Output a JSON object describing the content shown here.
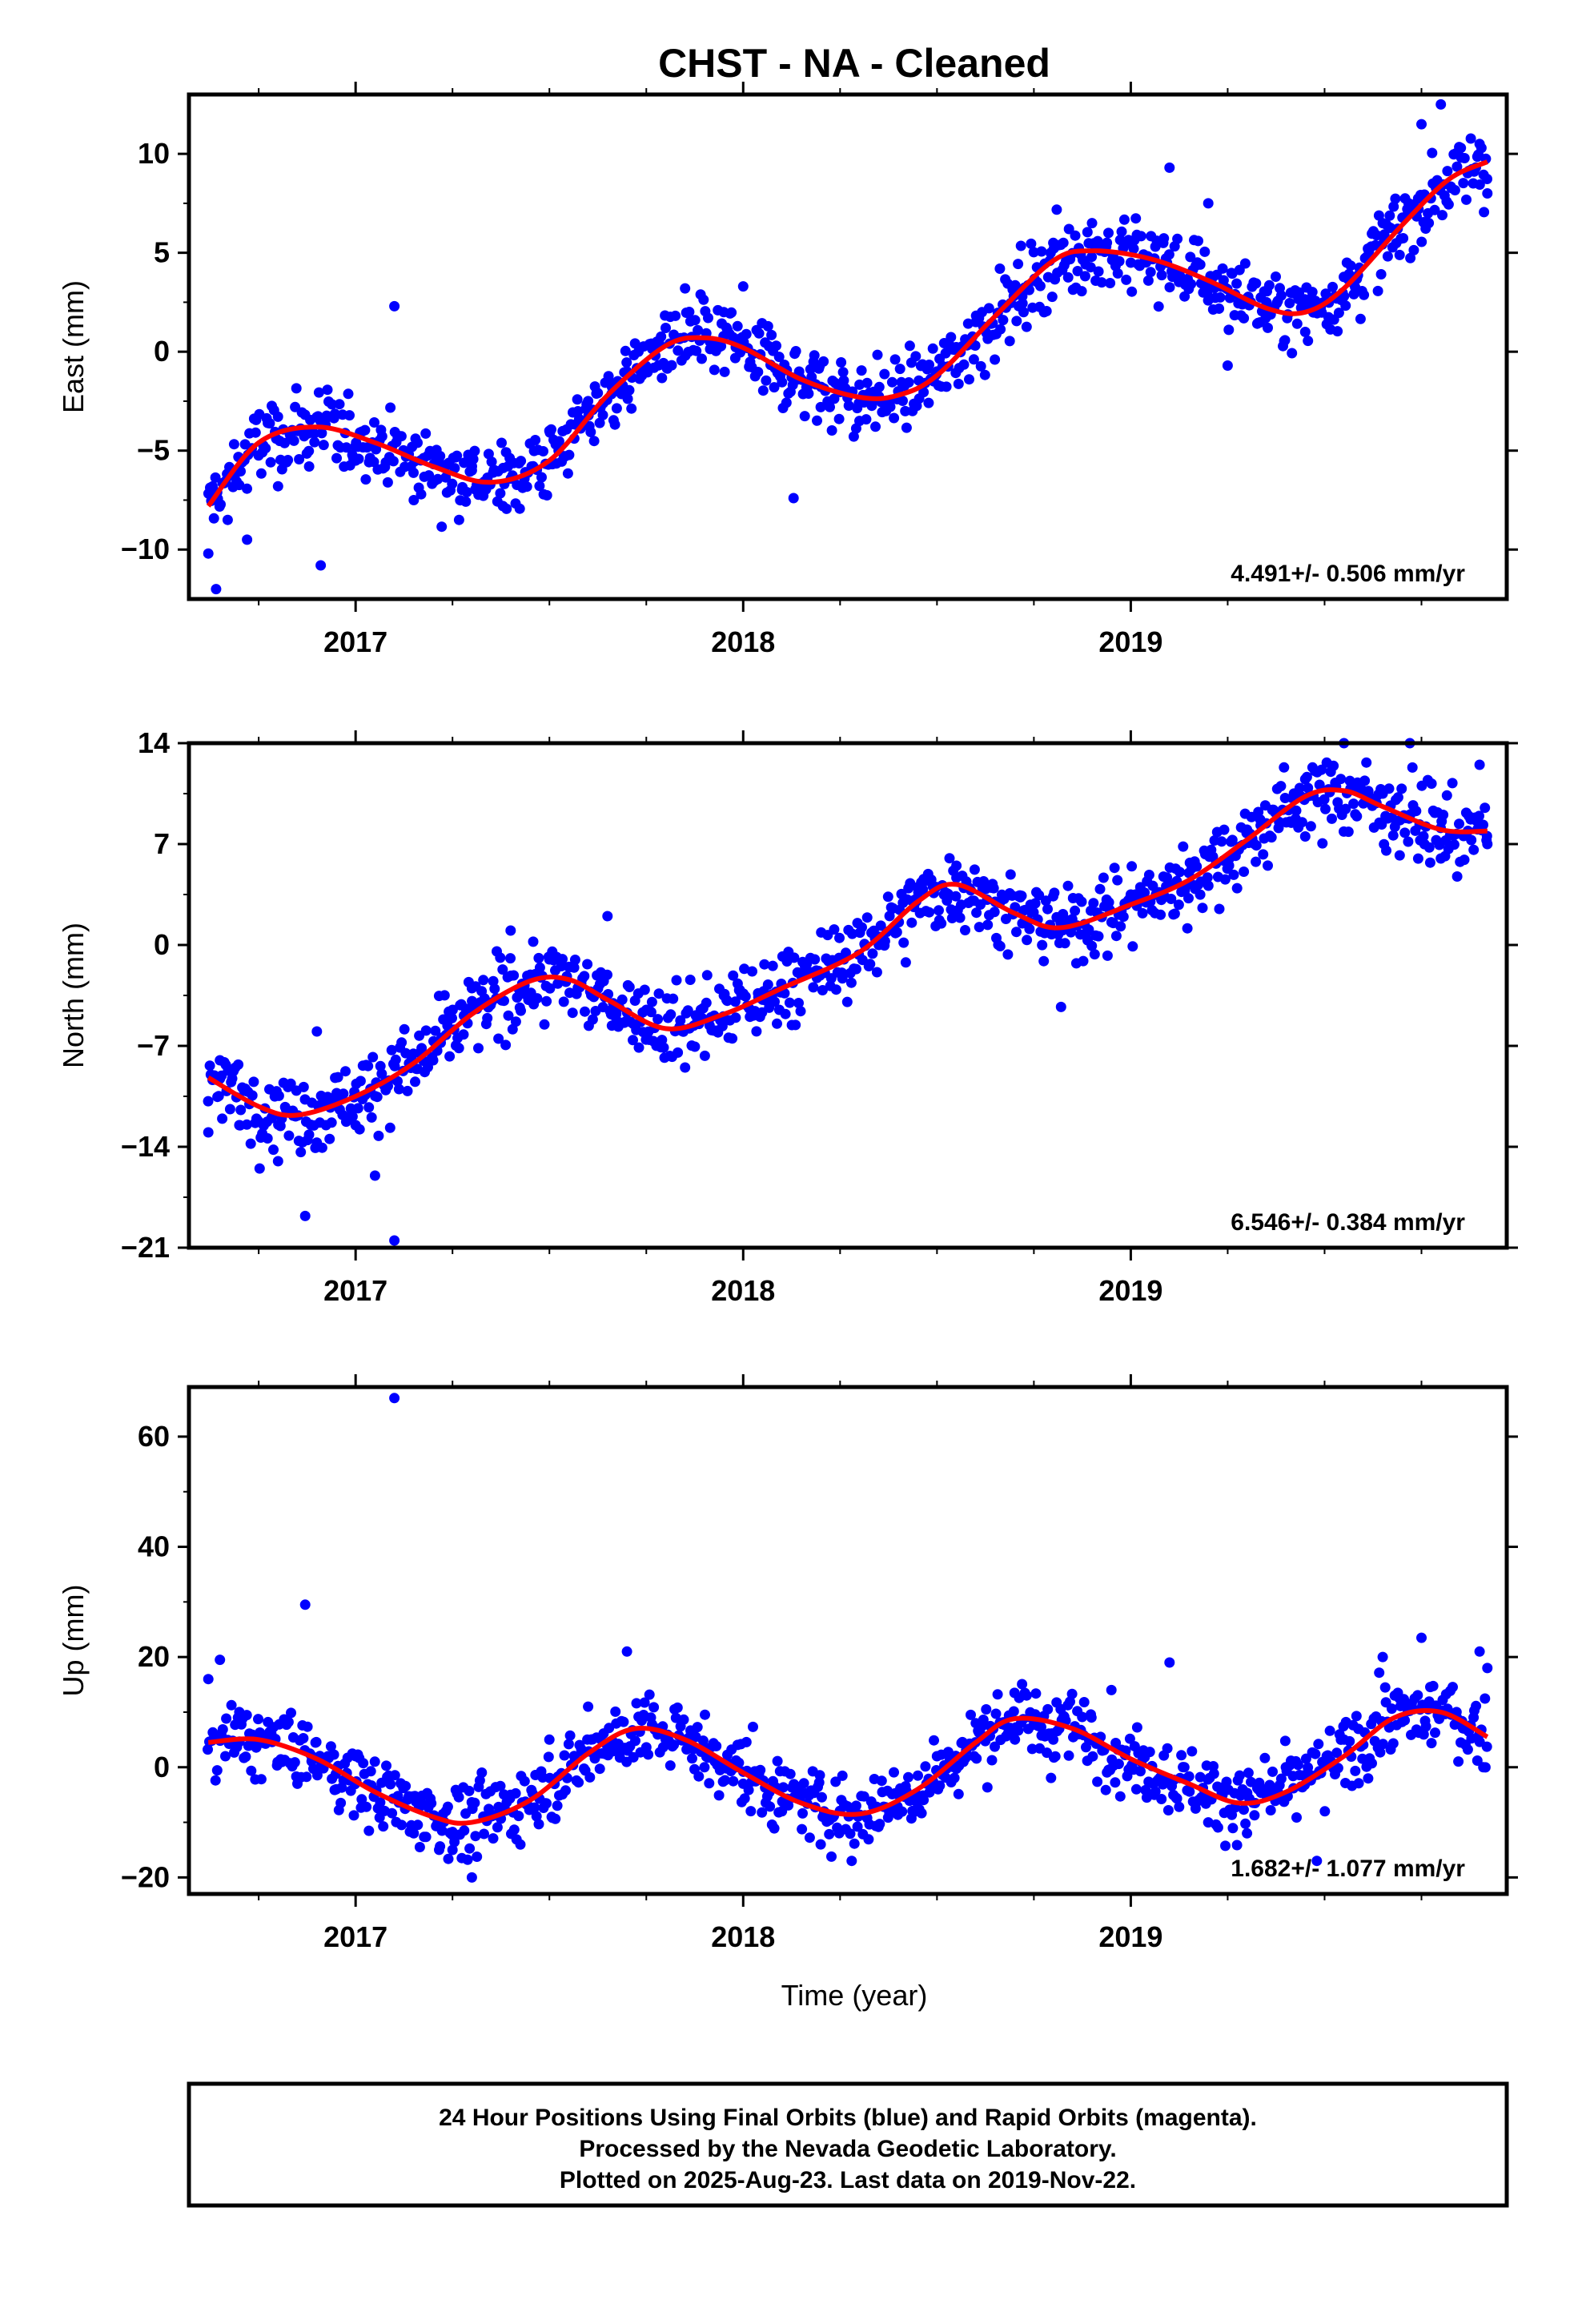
{
  "title": "CHST  - NA - Cleaned",
  "xlabel": "Time (year)",
  "footer": [
    "24 Hour Positions Using Final Orbits (blue) and Rapid Orbits (magenta).",
    "Processed by the Nevada Geodetic Laboratory.",
    "Plotted on 2025-Aug-23. Last data on 2019-Nov-22."
  ],
  "colors": {
    "points": "#0000ff",
    "fit": "#ff0000",
    "frame": "#000000"
  },
  "chart_data": [
    {
      "type": "scatter",
      "ylabel": "East (mm)",
      "rate_text": "4.491+/- 0.506 mm/yr",
      "xlim": [
        2016.57,
        2019.97
      ],
      "ylim": [
        -12.5,
        13
      ],
      "yticks": [
        -10,
        -5,
        0,
        5,
        10
      ],
      "xticks": [
        2017,
        2018,
        2019
      ],
      "fit": {
        "x": [
          2016.62,
          2016.75,
          2016.9,
          2017.05,
          2017.2,
          2017.35,
          2017.5,
          2017.65,
          2017.8,
          2017.9,
          2018.0,
          2018.15,
          2018.3,
          2018.4,
          2018.5,
          2018.65,
          2018.8,
          2018.9,
          2019.05,
          2019.2,
          2019.35,
          2019.45,
          2019.55,
          2019.7,
          2019.82,
          2019.92
        ],
        "y": [
          -7.8,
          -4.6,
          -3.8,
          -4.6,
          -5.8,
          -6.6,
          -5.5,
          -2.2,
          0.3,
          0.7,
          0.2,
          -1.4,
          -2.3,
          -2.2,
          -1.2,
          1.8,
          4.6,
          5.1,
          4.7,
          3.6,
          2.2,
          2.0,
          3.2,
          6.4,
          8.7,
          9.6
        ]
      },
      "points_sample": [
        [
          2016.62,
          -10.2
        ],
        [
          2016.64,
          -12.0
        ],
        [
          2016.67,
          -8.5
        ],
        [
          2016.72,
          -9.5
        ],
        [
          2016.8,
          -6.8
        ],
        [
          2016.88,
          -5.8
        ],
        [
          2016.91,
          -10.8
        ],
        [
          2017.0,
          -5.5
        ],
        [
          2017.1,
          2.3
        ],
        [
          2017.15,
          -7.5
        ],
        [
          2017.2,
          -5.2
        ],
        [
          2017.3,
          -6.0
        ],
        [
          2017.38,
          -7.8
        ],
        [
          2017.5,
          -4.0
        ],
        [
          2017.6,
          -2.5
        ],
        [
          2017.7,
          -1.0
        ],
        [
          2017.8,
          1.2
        ],
        [
          2017.85,
          3.2
        ],
        [
          2017.95,
          2.0
        ],
        [
          2018.0,
          3.3
        ],
        [
          2018.08,
          -1.8
        ],
        [
          2018.13,
          -7.4
        ],
        [
          2018.2,
          -2.8
        ],
        [
          2018.3,
          -3.5
        ],
        [
          2018.4,
          -2.0
        ],
        [
          2018.5,
          -1.0
        ],
        [
          2018.6,
          1.5
        ],
        [
          2018.72,
          2.8
        ],
        [
          2018.8,
          5.5
        ],
        [
          2018.9,
          6.5
        ],
        [
          2019.0,
          4.5
        ],
        [
          2019.1,
          9.3
        ],
        [
          2019.2,
          7.5
        ],
        [
          2019.25,
          -0.7
        ],
        [
          2019.35,
          2.5
        ],
        [
          2019.45,
          1.0
        ],
        [
          2019.55,
          2.8
        ],
        [
          2019.65,
          6.5
        ],
        [
          2019.75,
          11.5
        ],
        [
          2019.8,
          12.5
        ],
        [
          2019.9,
          10.5
        ],
        [
          2019.92,
          8.0
        ]
      ]
    },
    {
      "type": "scatter",
      "ylabel": "North (mm)",
      "rate_text": "6.546+/- 0.384 mm/yr",
      "xlim": [
        2016.57,
        2019.97
      ],
      "ylim": [
        -21,
        14
      ],
      "yticks": [
        -21,
        -14,
        -7,
        0,
        7,
        14
      ],
      "xticks": [
        2017,
        2018,
        2019
      ],
      "fit": {
        "x": [
          2016.62,
          2016.75,
          2016.85,
          2017.0,
          2017.15,
          2017.3,
          2017.45,
          2017.55,
          2017.65,
          2017.8,
          2017.95,
          2018.1,
          2018.3,
          2018.45,
          2018.55,
          2018.7,
          2018.82,
          2019.0,
          2019.15,
          2019.3,
          2019.45,
          2019.55,
          2019.65,
          2019.8,
          2019.92
        ],
        "y": [
          -9.2,
          -11.2,
          -11.8,
          -10.5,
          -8.2,
          -4.8,
          -2.5,
          -2.4,
          -3.8,
          -5.8,
          -4.8,
          -3.0,
          -0.5,
          3.0,
          4.2,
          2.2,
          1.2,
          2.8,
          4.5,
          7.3,
          10.3,
          10.7,
          9.6,
          8.0,
          7.9
        ]
      },
      "points_sample": [
        [
          2016.62,
          -13.0
        ],
        [
          2016.65,
          -8.0
        ],
        [
          2016.7,
          -12.5
        ],
        [
          2016.8,
          -15.0
        ],
        [
          2016.87,
          -18.8
        ],
        [
          2016.9,
          -6.0
        ],
        [
          2017.0,
          -12.5
        ],
        [
          2017.05,
          -16.0
        ],
        [
          2017.1,
          -20.5
        ],
        [
          2017.2,
          -8.0
        ],
        [
          2017.3,
          -3.0
        ],
        [
          2017.4,
          1.0
        ],
        [
          2017.5,
          -1.0
        ],
        [
          2017.65,
          2.0
        ],
        [
          2017.75,
          -4.5
        ],
        [
          2017.85,
          -8.5
        ],
        [
          2017.95,
          -3.5
        ],
        [
          2018.05,
          -3.8
        ],
        [
          2018.2,
          -2.0
        ],
        [
          2018.35,
          0.0
        ],
        [
          2018.45,
          4.0
        ],
        [
          2018.55,
          5.5
        ],
        [
          2018.65,
          3.0
        ],
        [
          2018.72,
          1.5
        ],
        [
          2018.82,
          -4.3
        ],
        [
          2019.0,
          3.5
        ],
        [
          2019.15,
          5.0
        ],
        [
          2019.3,
          8.0
        ],
        [
          2019.45,
          11.5
        ],
        [
          2019.55,
          14.0
        ],
        [
          2019.65,
          10.5
        ],
        [
          2019.72,
          14.0
        ],
        [
          2019.8,
          6.0
        ],
        [
          2019.9,
          12.5
        ],
        [
          2019.92,
          7.0
        ]
      ]
    },
    {
      "type": "scatter",
      "ylabel": "Up (mm)",
      "rate_text": "1.682+/- 1.077 mm/yr",
      "xlim": [
        2016.57,
        2019.97
      ],
      "ylim": [
        -23,
        69
      ],
      "yticks": [
        -20,
        0,
        20,
        40,
        60
      ],
      "xticks": [
        2017,
        2018,
        2019
      ],
      "fit": {
        "x": [
          2016.62,
          2016.75,
          2016.9,
          2017.05,
          2017.2,
          2017.3,
          2017.45,
          2017.6,
          2017.72,
          2017.85,
          2018.0,
          2018.15,
          2018.3,
          2018.45,
          2018.6,
          2018.7,
          2018.85,
          2019.0,
          2019.15,
          2019.28,
          2019.4,
          2019.55,
          2019.68,
          2019.8,
          2019.92
        ],
        "y": [
          4.5,
          5.0,
          1.5,
          -4.5,
          -9.0,
          -10.0,
          -6.0,
          2.5,
          7.0,
          5.0,
          -1.0,
          -6.5,
          -8.5,
          -4.0,
          4.5,
          8.8,
          7.0,
          1.5,
          -3.0,
          -6.5,
          -4.5,
          2.0,
          9.0,
          10.0,
          5.5
        ]
      },
      "points_sample": [
        [
          2016.62,
          16.0
        ],
        [
          2016.65,
          19.5
        ],
        [
          2016.7,
          10.0
        ],
        [
          2016.75,
          5.0
        ],
        [
          2016.87,
          29.5
        ],
        [
          2016.95,
          -4.0
        ],
        [
          2017.0,
          2.0
        ],
        [
          2017.1,
          67.0
        ],
        [
          2017.15,
          -12.0
        ],
        [
          2017.25,
          -15.0
        ],
        [
          2017.3,
          -20.0
        ],
        [
          2017.4,
          -5.0
        ],
        [
          2017.5,
          5.0
        ],
        [
          2017.6,
          11.0
        ],
        [
          2017.7,
          21.0
        ],
        [
          2017.8,
          5.0
        ],
        [
          2017.9,
          0.0
        ],
        [
          2018.0,
          -3.0
        ],
        [
          2018.1,
          -8.0
        ],
        [
          2018.2,
          -14.0
        ],
        [
          2018.28,
          -17.0
        ],
        [
          2018.4,
          -5.0
        ],
        [
          2018.5,
          2.0
        ],
        [
          2018.6,
          8.0
        ],
        [
          2018.7,
          13.5
        ],
        [
          2018.8,
          5.0
        ],
        [
          2018.95,
          14.0
        ],
        [
          2019.0,
          0.0
        ],
        [
          2019.1,
          19.0
        ],
        [
          2019.2,
          -10.0
        ],
        [
          2019.3,
          -12.0
        ],
        [
          2019.4,
          0.0
        ],
        [
          2019.48,
          -17.0
        ],
        [
          2019.55,
          5.0
        ],
        [
          2019.65,
          20.0
        ],
        [
          2019.75,
          23.5
        ],
        [
          2019.82,
          10.0
        ],
        [
          2019.9,
          21.0
        ],
        [
          2019.92,
          18.0
        ]
      ]
    }
  ]
}
